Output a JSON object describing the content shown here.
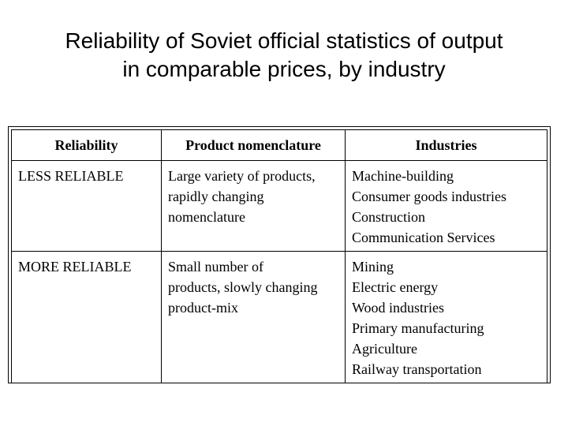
{
  "title": {
    "line1": "Reliability of Soviet official statistics of output",
    "line2": "in comparable prices, by industry"
  },
  "table": {
    "headers": [
      "Reliability",
      "Product nomenclature",
      "Industries"
    ],
    "rows": [
      {
        "reliability": "LESS RELIABLE",
        "nomenclature": [
          "Large variety of products,",
          "rapidly changing",
          "nomenclature"
        ],
        "industries": [
          "Machine-building",
          "Consumer goods industries",
          "Construction",
          "Communication Services"
        ]
      },
      {
        "reliability": "MORE RELIABLE",
        "nomenclature": [
          "Small number of",
          "products, slowly changing",
          "product-mix"
        ],
        "industries": [
          "Mining",
          "Electric energy",
          "Wood industries",
          "Primary manufacturing",
          "Agriculture",
          "Railway transportation"
        ]
      }
    ]
  }
}
